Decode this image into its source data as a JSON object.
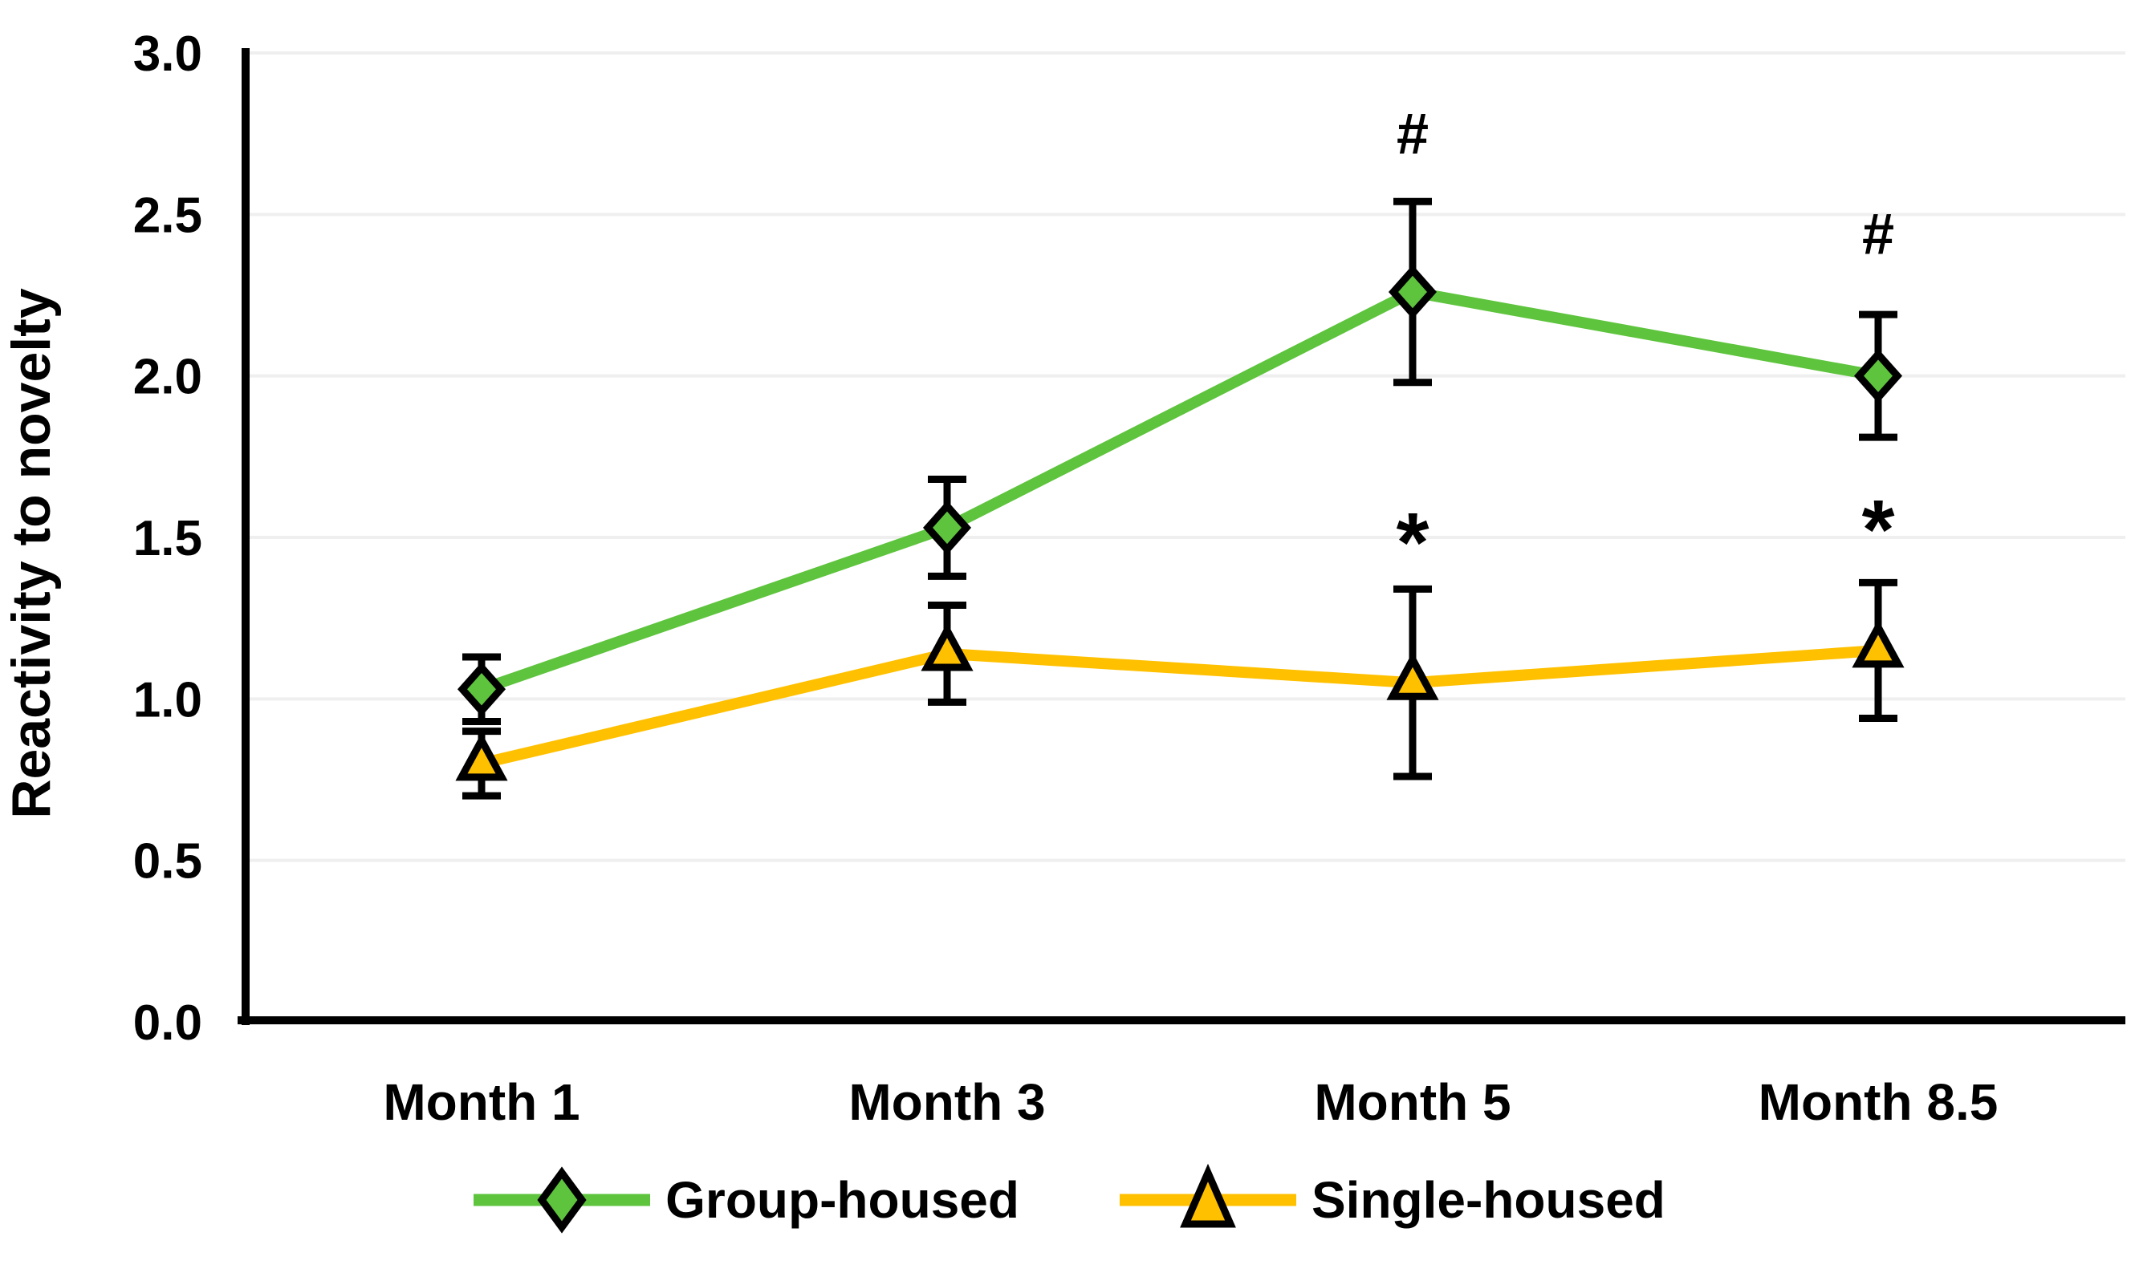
{
  "chart_data": {
    "type": "line",
    "title": "",
    "xlabel": "",
    "ylabel": "Reactivity to novelty",
    "categories": [
      "Month 1",
      "Month 3",
      "Month 5",
      "Month 8.5"
    ],
    "ylim": [
      0.0,
      3.0
    ],
    "yticks": [
      0.0,
      0.5,
      1.0,
      1.5,
      2.0,
      2.5,
      3.0
    ],
    "ytick_labels": [
      "0.0",
      "0.5",
      "1.0",
      "1.5",
      "2.0",
      "2.5",
      "3.0"
    ],
    "grid": "horizontal",
    "legend_position": "bottom",
    "colors": {
      "group_housed": "#5EC43D",
      "single_housed": "#FFC000",
      "axis": "#000000",
      "gridline": "#EFEFEF",
      "error_bar": "#000000",
      "background": "#FFFFFF"
    },
    "series": [
      {
        "name": "Group-housed",
        "marker": "diamond",
        "color": "#5EC43D",
        "values": [
          1.03,
          1.53,
          2.26,
          2.0
        ],
        "errors": [
          0.1,
          0.15,
          0.28,
          0.19
        ]
      },
      {
        "name": "Single-housed",
        "marker": "triangle",
        "color": "#FFC000",
        "values": [
          0.8,
          1.14,
          1.05,
          1.15
        ],
        "errors": [
          0.1,
          0.15,
          0.29,
          0.21
        ]
      }
    ],
    "annotations": [
      {
        "text": "#",
        "series": "Group-housed",
        "category_index": 2,
        "y_value": 2.75
      },
      {
        "text": "#",
        "series": "Group-housed",
        "category_index": 3,
        "y_value": 2.44
      },
      {
        "text": "*",
        "series": "Single-housed",
        "category_index": 2,
        "y_value": 1.52
      },
      {
        "text": "*",
        "series": "Single-housed",
        "category_index": 3,
        "y_value": 1.56
      }
    ]
  }
}
